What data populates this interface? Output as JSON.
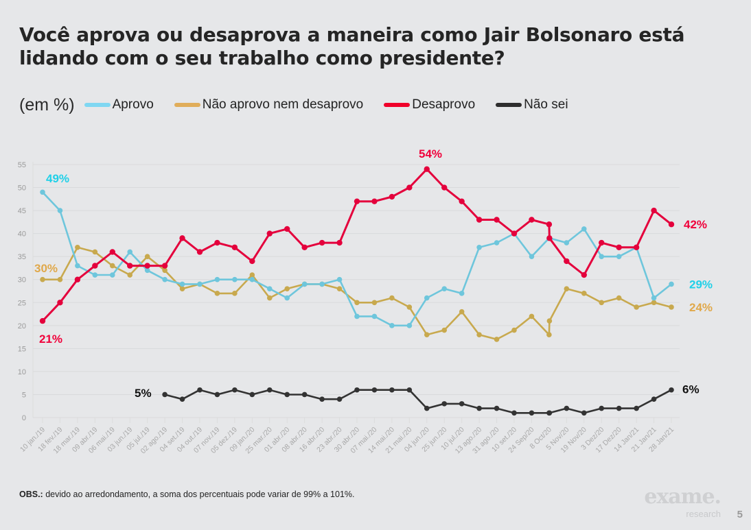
{
  "title": "Você aprova ou desaprova a maneira como Jair Bolsonaro está lidando com o seu trabalho como presidente?",
  "unit_label": "(em %)",
  "footer": {
    "note_bold": "OBS.:",
    "note_text": " devido ao arredondamento, a soma dos percentuais pode variar de 99% a 101%.",
    "brand": "exame.",
    "brand_sub": "research",
    "page_number": "5"
  },
  "chart_data": {
    "type": "line",
    "title": "Você aprova ou desaprova a maneira como Jair Bolsonaro está lidando com o seu trabalho como presidente?",
    "ylabel": "(em %)",
    "xlabel": "",
    "ylim": [
      0,
      55
    ],
    "yticks": [
      0,
      5,
      10,
      15,
      20,
      25,
      30,
      35,
      40,
      45,
      50,
      55
    ],
    "grid": true,
    "legend_position": "top",
    "categories": [
      "10 jan./19",
      "18 fev./19",
      "18 mar./19",
      "09 abr./19",
      "06 mai./19",
      "03 jun./19",
      "05 jul./19",
      "02 ago./19",
      "04 set./19",
      "04 out./19",
      "07 nov./19",
      "05 dez./19",
      "09 jan./20",
      "25 mar./20",
      "01 abr./20",
      "08 abr./20",
      "16 abr./20",
      "23 abr./20",
      "30 abr./20",
      "07 mai./20",
      "14 mai./20",
      "21 mai./20",
      "04 jun./20",
      "25 jun./20",
      "10 jul./20",
      "13 ago./20",
      "31 ago./20",
      "10 set./20",
      "24 Sep/20",
      "8 Oct/20",
      "5 Nov/20",
      "19 Nov/20",
      "3 Dez/20",
      "17 Dez/20",
      "14 Jan/21",
      "21 Jan/21",
      "28 Jan/21"
    ],
    "point_category_index": [
      0,
      1,
      2,
      3,
      4,
      5,
      6,
      7,
      8,
      9,
      10,
      11,
      12,
      13,
      14,
      15,
      16,
      17,
      18,
      19,
      20,
      21,
      22,
      23,
      24,
      25,
      26,
      27,
      28,
      29,
      29,
      30,
      31,
      32,
      33,
      34,
      35,
      36
    ],
    "series": [
      {
        "name": "Aprovo",
        "color": "#6ec6dc",
        "label_color": "#1fd0e8",
        "values": [
          49,
          45,
          33,
          31,
          31,
          36,
          32,
          30,
          29,
          29,
          30,
          30,
          30,
          28,
          26,
          29,
          29,
          30,
          22,
          22,
          20,
          20,
          26,
          28,
          27,
          37,
          38,
          40,
          35,
          39,
          39,
          38,
          41,
          35,
          35,
          37,
          26,
          29
        ],
        "start_label": "49%",
        "end_label": "29%"
      },
      {
        "name": "Não aprovo nem desaprovo",
        "color": "#c8a94e",
        "label_color": "#e0a84a",
        "values": [
          30,
          30,
          37,
          36,
          33,
          31,
          35,
          32,
          28,
          29,
          27,
          27,
          31,
          26,
          28,
          29,
          29,
          28,
          25,
          25,
          26,
          24,
          18,
          19,
          23,
          18,
          17,
          19,
          22,
          18,
          21,
          28,
          27,
          25,
          26,
          24,
          25,
          24
        ],
        "start_label": "30%",
        "end_label": "24%"
      },
      {
        "name": "Desaprovo",
        "color": "#e4003c",
        "label_color": "#f0003a",
        "values": [
          21,
          25,
          30,
          33,
          36,
          33,
          33,
          33,
          39,
          36,
          38,
          37,
          34,
          40,
          41,
          37,
          38,
          38,
          47,
          47,
          48,
          50,
          54,
          50,
          47,
          43,
          43,
          40,
          43,
          42,
          39,
          34,
          31,
          38,
          37,
          37,
          45,
          42
        ],
        "start_label": "21%",
        "end_label": "42%",
        "peak_label": "54%"
      },
      {
        "name": "Não sei",
        "color": "#333333",
        "label_color": "#111111",
        "values": [
          null,
          null,
          null,
          null,
          null,
          null,
          null,
          5,
          4,
          6,
          5,
          6,
          5,
          6,
          5,
          5,
          4,
          4,
          6,
          6,
          6,
          6,
          2,
          3,
          3,
          2,
          2,
          1,
          1,
          1,
          1,
          2,
          1,
          2,
          2,
          2,
          4,
          6
        ],
        "start_label": "5%",
        "end_label": "6%"
      }
    ]
  },
  "legend": [
    {
      "label": "Aprovo",
      "color": "#7fd7f2"
    },
    {
      "label": "Não aprovo nem desaprovo",
      "color": "#e0ad5a"
    },
    {
      "label": "Desaprovo",
      "color": "#f0002a"
    },
    {
      "label": "Não sei",
      "color": "#2e2e2e"
    }
  ]
}
